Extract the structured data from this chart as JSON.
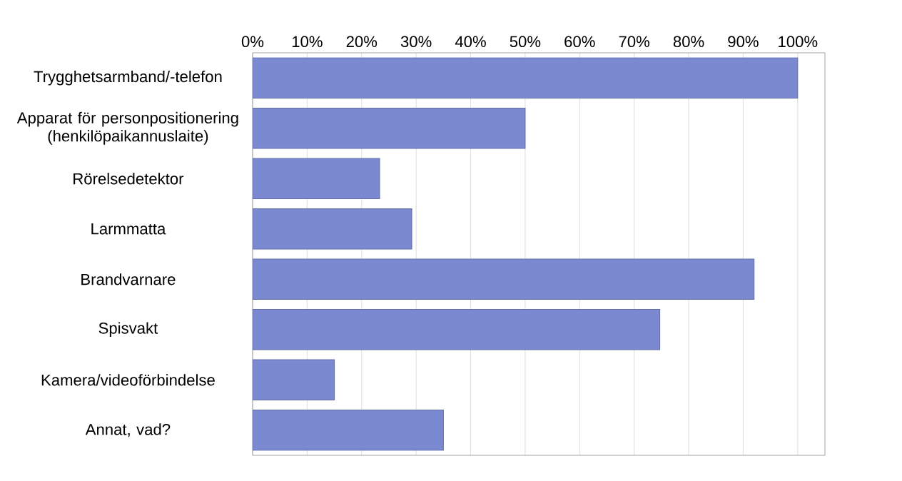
{
  "chart_data": {
    "type": "bar",
    "orientation": "horizontal",
    "categories": [
      "Trygghetsarmband/-telefon",
      "Apparat för personpositionering (henkilöpaikannuslaite)",
      "Rörelsedetektor",
      "Larmmatta",
      "Brandvarnare",
      "Spisvakt",
      "Kamera/videoförbindelse",
      "Annat, vad?"
    ],
    "values": [
      100,
      50,
      23.3,
      29.2,
      92,
      74.7,
      15,
      35
    ],
    "color": "#7b89d1",
    "xlim": [
      0,
      105
    ],
    "xticks": [
      {
        "value": 0,
        "label": "0%"
      },
      {
        "value": 10,
        "label": "10%"
      },
      {
        "value": 20,
        "label": "20%"
      },
      {
        "value": 30,
        "label": "30%"
      },
      {
        "value": 40,
        "label": "40%"
      },
      {
        "value": 50,
        "label": "50%"
      },
      {
        "value": 60,
        "label": "60%"
      },
      {
        "value": 70,
        "label": "70%"
      },
      {
        "value": 80,
        "label": "80%"
      },
      {
        "value": 90,
        "label": "90%"
      },
      {
        "value": 100,
        "label": "100%"
      }
    ],
    "grid": "x"
  }
}
